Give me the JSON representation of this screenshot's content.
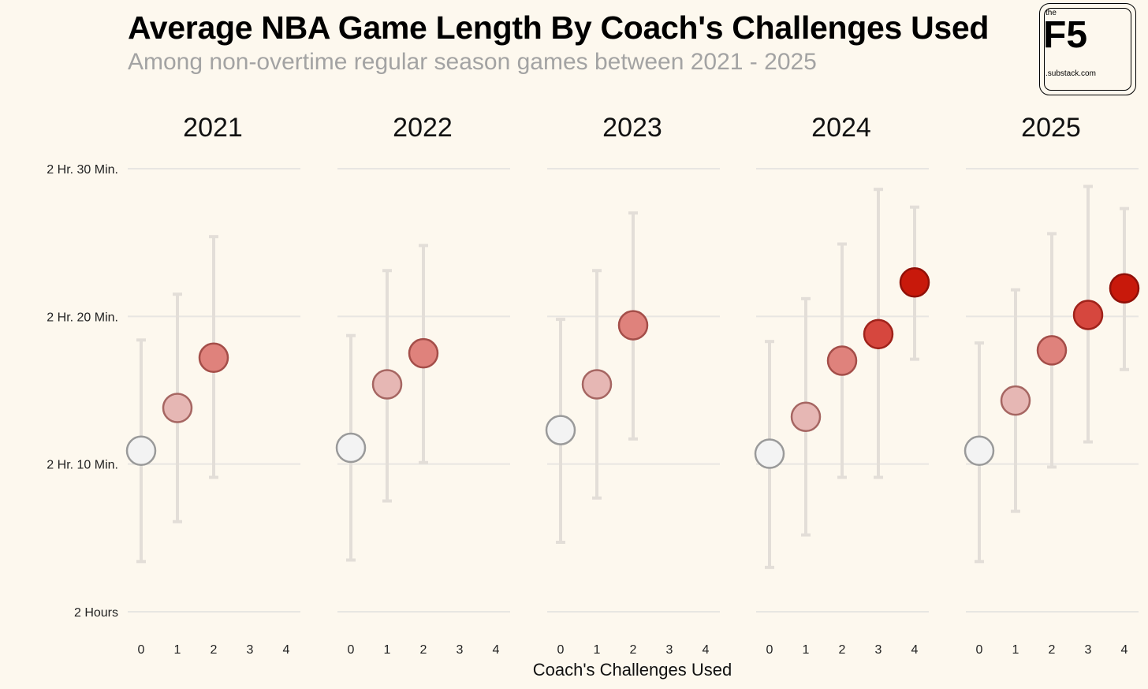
{
  "header": {
    "title": "Average NBA Game Length By Coach's Challenges Used",
    "subtitle": "Among non-overtime regular season games between 2021 - 2025"
  },
  "logo": {
    "small_top": "the",
    "mark": "F5",
    "site": ".substack.com"
  },
  "colors": {
    "background": "#fdf8ee",
    "gridline": "#e8e6e2",
    "errorbar": "#e3ded8",
    "point_fill": [
      "#f3f3f3",
      "#e6b7b4",
      "#df827c",
      "#d6473e",
      "#c8190b"
    ],
    "point_stroke": [
      "#9a9a9a",
      "#a66662",
      "#a44e49",
      "#a0231b",
      "#901008"
    ]
  },
  "chart_data": {
    "type": "scatter",
    "title": "Average NBA Game Length By Coach's Challenges Used",
    "subtitle": "Among non-overtime regular season games between 2021 - 2025",
    "xlabel": "Coach's Challenges Used",
    "ylabel": "",
    "x_ticks": [
      "0",
      "1",
      "2",
      "3",
      "4"
    ],
    "ylim_minutes": [
      120,
      150
    ],
    "y_ticks": [
      {
        "minutes": 120,
        "label": "2 Hours"
      },
      {
        "minutes": 130,
        "label": "2 Hr. 10 Min."
      },
      {
        "minutes": 140,
        "label": "2 Hr. 20 Min."
      },
      {
        "minutes": 150,
        "label": "2 Hr. 30 Min."
      }
    ],
    "grid": true,
    "legend": "none",
    "panels": [
      {
        "title": "2021",
        "points": [
          {
            "x": 0,
            "mean": 130.9,
            "low": 123.4,
            "high": 138.4
          },
          {
            "x": 1,
            "mean": 133.8,
            "low": 126.1,
            "high": 141.5
          },
          {
            "x": 2,
            "mean": 137.2,
            "low": 129.1,
            "high": 145.4
          }
        ]
      },
      {
        "title": "2022",
        "points": [
          {
            "x": 0,
            "mean": 131.1,
            "low": 123.5,
            "high": 138.7
          },
          {
            "x": 1,
            "mean": 135.4,
            "low": 127.5,
            "high": 143.1
          },
          {
            "x": 2,
            "mean": 137.5,
            "low": 130.1,
            "high": 144.8
          }
        ]
      },
      {
        "title": "2023",
        "points": [
          {
            "x": 0,
            "mean": 132.3,
            "low": 124.7,
            "high": 139.8
          },
          {
            "x": 1,
            "mean": 135.4,
            "low": 127.7,
            "high": 143.1
          },
          {
            "x": 2,
            "mean": 139.4,
            "low": 131.7,
            "high": 147.0
          }
        ]
      },
      {
        "title": "2024",
        "points": [
          {
            "x": 0,
            "mean": 130.7,
            "low": 123.0,
            "high": 138.3
          },
          {
            "x": 1,
            "mean": 133.2,
            "low": 125.2,
            "high": 141.2
          },
          {
            "x": 2,
            "mean": 137.0,
            "low": 129.1,
            "high": 144.9
          },
          {
            "x": 3,
            "mean": 138.8,
            "low": 129.1,
            "high": 148.6
          },
          {
            "x": 4,
            "mean": 142.3,
            "low": 137.1,
            "high": 147.4
          }
        ]
      },
      {
        "title": "2025",
        "points": [
          {
            "x": 0,
            "mean": 130.9,
            "low": 123.4,
            "high": 138.2
          },
          {
            "x": 1,
            "mean": 134.3,
            "low": 126.8,
            "high": 141.8
          },
          {
            "x": 2,
            "mean": 137.7,
            "low": 129.8,
            "high": 145.6
          },
          {
            "x": 3,
            "mean": 140.1,
            "low": 131.5,
            "high": 148.8
          },
          {
            "x": 4,
            "mean": 141.9,
            "low": 136.4,
            "high": 147.3
          }
        ]
      }
    ]
  }
}
